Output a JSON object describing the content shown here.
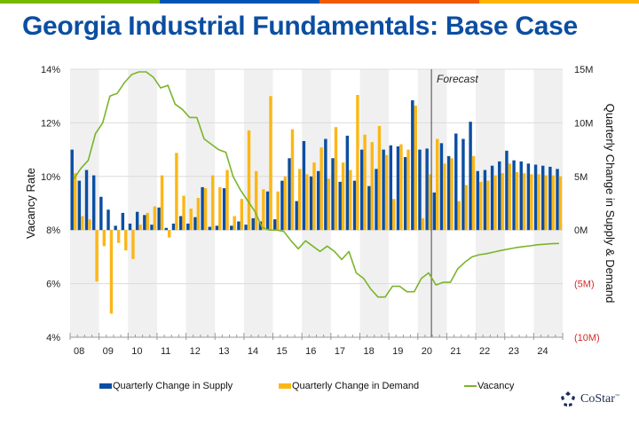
{
  "header": {
    "title": "Georgia Industrial Fundamentals: Base Case",
    "strip_colors": [
      "#76B900",
      "#0055B3",
      "#F05A00",
      "#FFB400"
    ]
  },
  "legend": {
    "supply": "Quarterly Change in Supply",
    "demand": "Quarterly Change in Demand",
    "vacancy": "Vacancy"
  },
  "branding": {
    "logo_text": "CoStar",
    "trademark": "™"
  },
  "colors": {
    "supply": "#0b4ea2",
    "demand": "#fbb718",
    "vacancy": "#7ab52b",
    "negative_label": "#d62a2a",
    "band": "#f0f0f0",
    "title": "#0b4ea2"
  },
  "chart_data": {
    "type": "bar",
    "title": "Georgia Industrial Fundamentals: Base Case",
    "xlabel": "",
    "ylabel": "Vacancy Rate",
    "y2label": "Quarterly Change in Supply & Demand",
    "annotation": "Forecast",
    "forecast_start": "2020 Q3",
    "ylim": [
      4,
      14
    ],
    "y2lim": [
      -10,
      15
    ],
    "yticks": [
      "14%",
      "12%",
      "10%",
      "8%",
      "6%",
      "4%"
    ],
    "y2ticks": [
      "15M",
      "10M",
      "5M",
      "0M",
      "(5M)",
      "(10M)"
    ],
    "xticks": [
      "08",
      "09",
      "10",
      "11",
      "12",
      "13",
      "14",
      "15",
      "16",
      "17",
      "18",
      "19",
      "20",
      "21",
      "22",
      "23",
      "24"
    ],
    "grid": "horizontal",
    "legend_position": "bottom",
    "units": {
      "supply_demand": "million sq ft",
      "vacancy": "percent"
    },
    "quarters_per_year": 4,
    "start_year": 2008,
    "series": [
      {
        "name": "Quarterly Change in Supply",
        "type": "bar",
        "axis": "right",
        "values": [
          7.5,
          4.6,
          5.6,
          5.1,
          3.1,
          1.9,
          0.4,
          1.6,
          0.6,
          1.7,
          1.4,
          0.5,
          2.1,
          0.2,
          0.6,
          1.3,
          0.6,
          1.2,
          4.0,
          0.3,
          0.4,
          3.9,
          0.4,
          0.8,
          0.5,
          1.1,
          0.8,
          3.6,
          1.0,
          4.6,
          6.7,
          2.7,
          8.3,
          5.0,
          5.5,
          8.5,
          6.7,
          4.5,
          8.8,
          4.6,
          7.5,
          4.1,
          5.7,
          7.5,
          7.9,
          7.8,
          6.8,
          12.1,
          7.5,
          7.6,
          3.5,
          8.1,
          6.9,
          9.0,
          8.5,
          10.1,
          5.5,
          5.6,
          6.0,
          6.4,
          7.4,
          6.5,
          6.4,
          6.2,
          6.1,
          6.0,
          5.9,
          5.7
        ]
      },
      {
        "name": "Quarterly Change in Demand",
        "type": "bar",
        "axis": "right",
        "values": [
          5.3,
          1.3,
          1.0,
          -4.8,
          -1.5,
          -7.8,
          -1.2,
          -1.9,
          -2.7,
          0.5,
          1.6,
          2.2,
          5.1,
          -0.7,
          7.2,
          3.2,
          2.0,
          3.0,
          3.9,
          5.1,
          4.0,
          5.6,
          1.3,
          2.9,
          9.3,
          5.5,
          3.8,
          12.5,
          3.6,
          5.0,
          9.4,
          5.7,
          5.2,
          6.3,
          7.7,
          4.8,
          9.6,
          6.3,
          5.6,
          12.6,
          8.9,
          8.2,
          9.7,
          7.0,
          2.9,
          8.0,
          7.5,
          11.6,
          1.1,
          5.2,
          8.5,
          6.2,
          6.7,
          2.7,
          4.2,
          6.9,
          4.5,
          4.6,
          5.1,
          5.3,
          6.2,
          5.4,
          5.3,
          5.2,
          5.2,
          5.1,
          5.1,
          5.0
        ]
      },
      {
        "name": "Vacancy",
        "type": "line",
        "axis": "left",
        "values": [
          9.9,
          10.3,
          10.6,
          11.6,
          12.0,
          13.0,
          13.1,
          13.5,
          13.8,
          13.9,
          13.9,
          13.7,
          13.3,
          13.4,
          12.7,
          12.5,
          12.2,
          12.2,
          11.4,
          11.2,
          11.0,
          10.9,
          10.0,
          9.5,
          9.1,
          8.7,
          8.1,
          8.0,
          8.0,
          7.95,
          7.6,
          7.3,
          7.6,
          7.4,
          7.2,
          7.4,
          7.2,
          6.9,
          7.2,
          6.4,
          6.2,
          5.8,
          5.5,
          5.5,
          5.9,
          5.9,
          5.7,
          5.7,
          6.2,
          6.4,
          5.95,
          6.05,
          6.05,
          6.55,
          6.8,
          7.0,
          7.08,
          7.12,
          7.18,
          7.24,
          7.29,
          7.34,
          7.38,
          7.41,
          7.45,
          7.47,
          7.49,
          7.5
        ]
      }
    ]
  }
}
